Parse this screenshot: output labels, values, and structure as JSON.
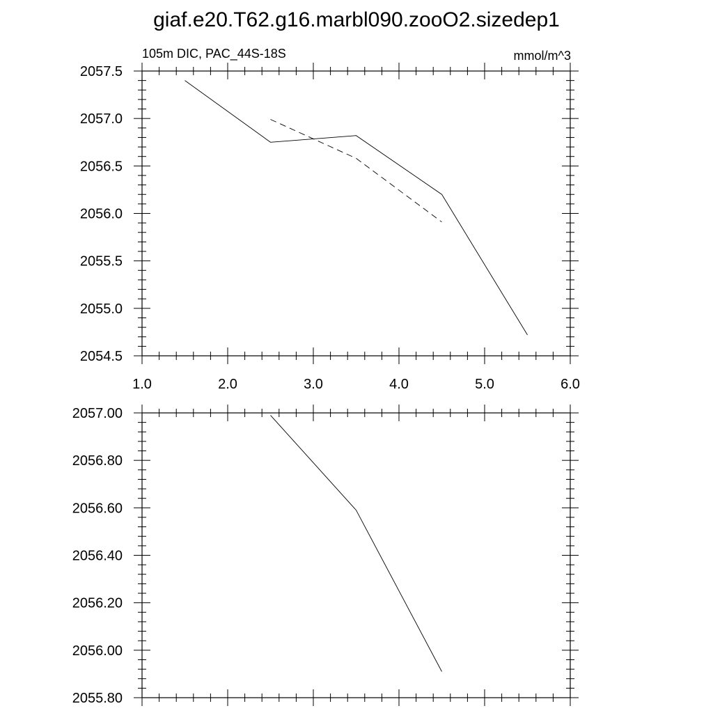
{
  "figure": {
    "title": "giaf.e20.T62.g16.marbl090.zooO2.sizedep1"
  },
  "chart_data": [
    {
      "type": "line",
      "left_string": "105m DIC, PAC_44S-18S",
      "right_string": "mmol/m^3",
      "xlim": [
        1.0,
        6.0
      ],
      "ylim": [
        2054.5,
        2057.5
      ],
      "x_ticks": [
        "1.0",
        "2.0",
        "3.0",
        "4.0",
        "5.0",
        "6.0"
      ],
      "y_ticks": [
        "2054.5",
        "2055.0",
        "2055.5",
        "2056.0",
        "2056.5",
        "2057.0",
        "2057.5"
      ],
      "series": [
        {
          "style": "solid",
          "x": [
            1.5,
            2.5,
            3.5,
            4.5,
            5.5
          ],
          "y": [
            2057.4,
            2056.75,
            2056.82,
            2056.2,
            2054.72
          ]
        },
        {
          "style": "dashed",
          "x": [
            2.5,
            3.5,
            4.5
          ],
          "y": [
            2056.99,
            2056.58,
            2055.91
          ]
        }
      ]
    },
    {
      "type": "line",
      "xlim": [
        1.0,
        6.0
      ],
      "ylim": [
        2055.8,
        2057.0
      ],
      "y_ticks": [
        "2055.80",
        "2056.00",
        "2056.20",
        "2056.40",
        "2056.60",
        "2056.80",
        "2057.00"
      ],
      "series": [
        {
          "style": "solid",
          "x": [
            2.5,
            3.5,
            4.5
          ],
          "y": [
            2056.99,
            2056.59,
            2055.91
          ]
        }
      ]
    }
  ]
}
